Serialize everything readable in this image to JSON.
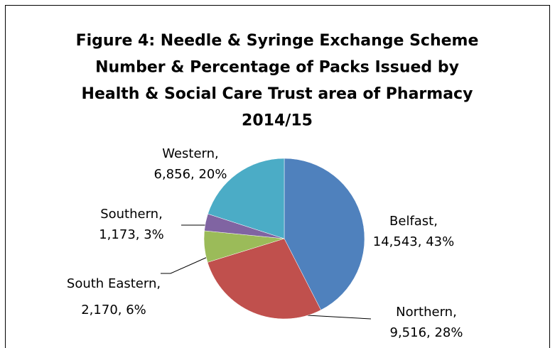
{
  "chart_data": {
    "type": "pie",
    "title": [
      "Figure 4: Needle & Syringe Exchange Scheme",
      "Number & Percentage of Packs Issued by",
      "Health & Social Care Trust area of Pharmacy",
      "2014/15"
    ],
    "categories": [
      "Belfast",
      "Northern",
      "South Eastern",
      "Southern",
      "Western"
    ],
    "values": [
      14543,
      9516,
      2170,
      1173,
      6856
    ],
    "value_labels": [
      "14,543, 43%",
      "9,516, 28%",
      "2,170, 6%",
      "1,173, 3%",
      "6,856, 20%"
    ],
    "label_separator": ",",
    "colors": [
      "#4f81bd",
      "#c0504d",
      "#9bbb59",
      "#8064a2",
      "#4bacc6"
    ]
  }
}
